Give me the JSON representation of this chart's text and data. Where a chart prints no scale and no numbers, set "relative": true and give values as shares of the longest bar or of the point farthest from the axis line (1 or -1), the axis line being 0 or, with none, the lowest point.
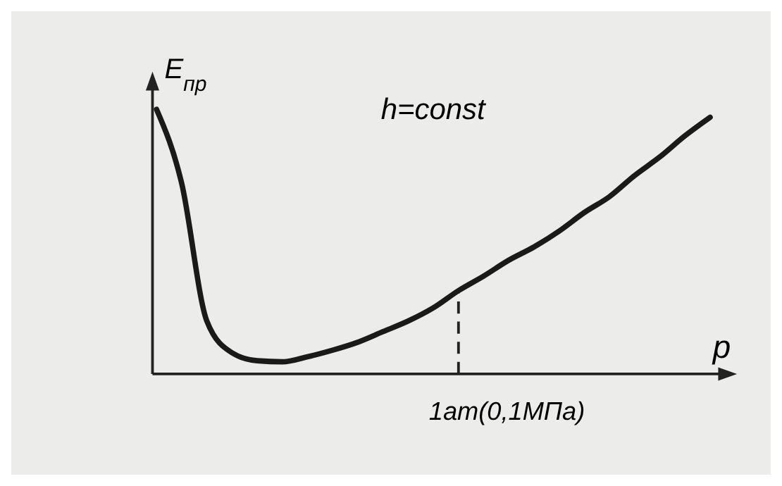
{
  "chart_data": {
    "type": "line",
    "relative": true,
    "xlabel": "p",
    "ylabel": "E$_{пр}$",
    "annotations": [
      "h=const",
      "1ат(0,1МПа)"
    ],
    "categories": [
      null,
      null,
      null,
      null,
      null,
      null,
      null,
      null,
      null,
      null,
      null,
      null,
      null,
      null,
      null,
      null,
      null,
      null,
      null,
      null,
      null,
      null,
      null
    ],
    "series": [
      {
        "color": "#1a1a1a",
        "values": [
          1.0,
          0.72,
          0.2,
          0.08,
          0.05,
          0.046,
          0.065,
          0.09,
          0.12,
          0.16,
          0.2,
          0.25,
          0.315,
          0.37,
          0.43,
          0.48,
          0.54,
          0.61,
          0.67,
          0.75,
          0.82,
          0.9,
          0.97
        ]
      }
    ],
    "marker": "none",
    "line_style": "solid"
  }
}
